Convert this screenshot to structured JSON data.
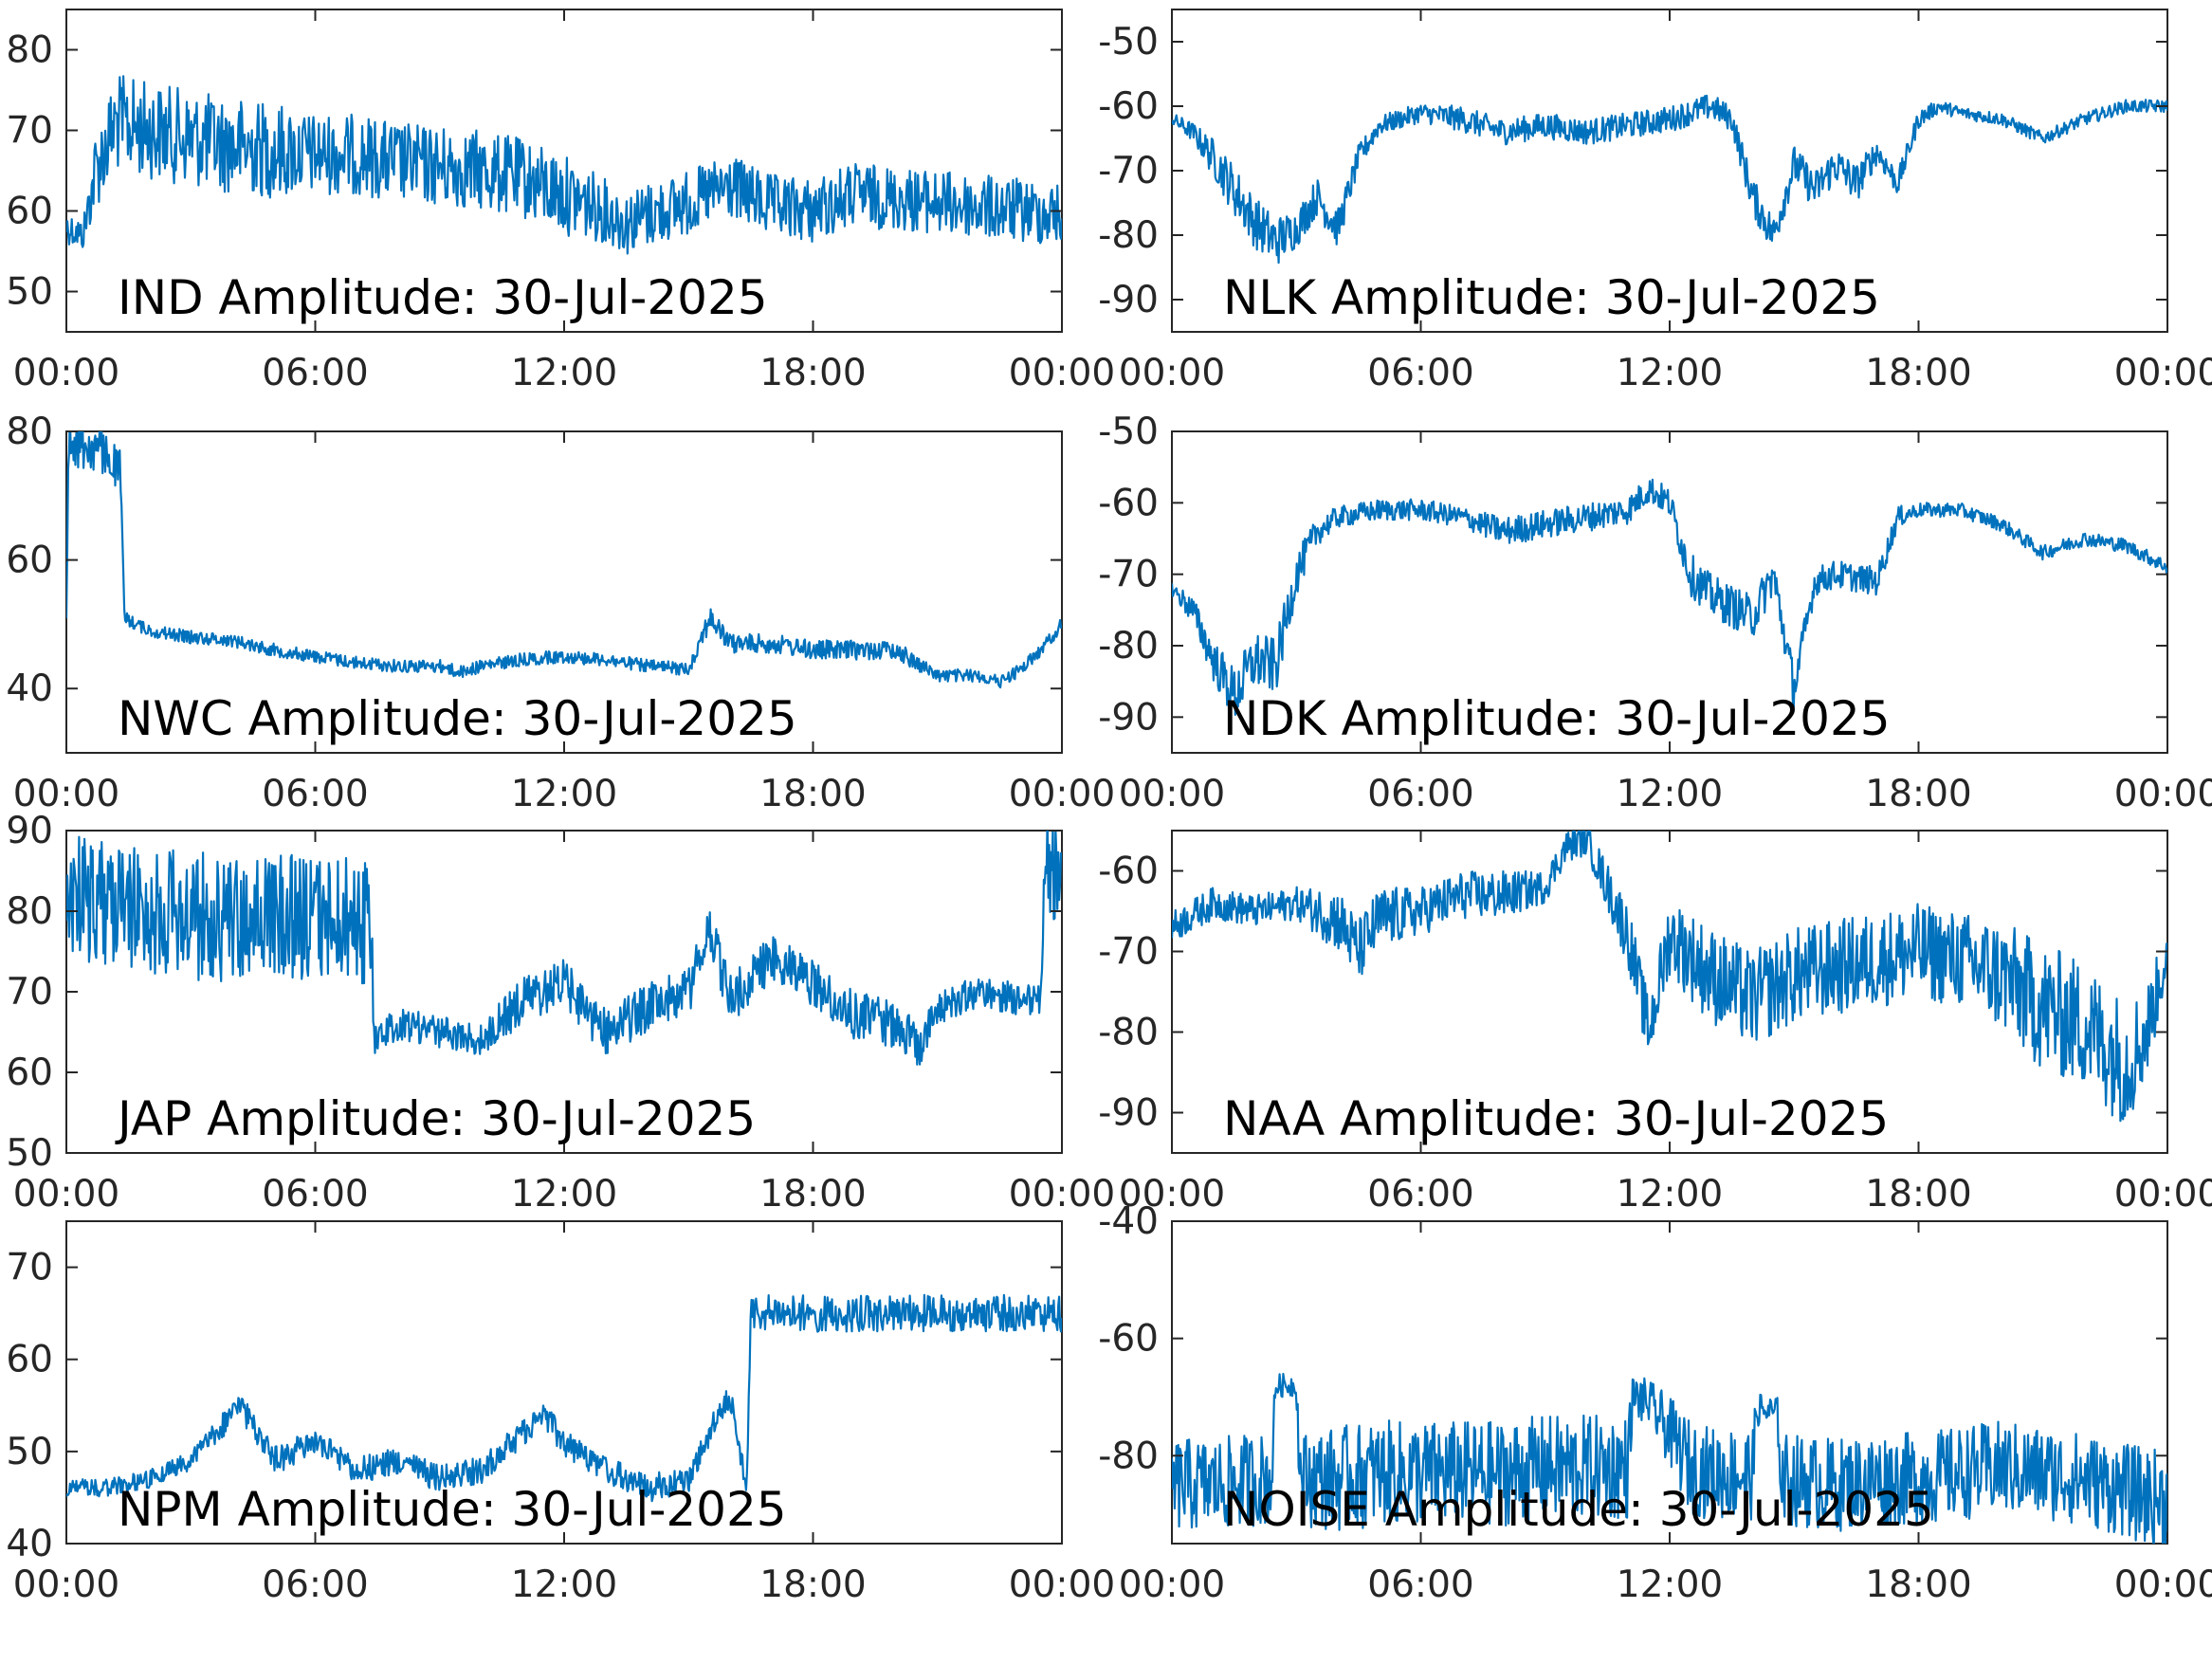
{
  "chart_data": [
    {
      "type": "line",
      "title": "IND Amplitude: 30-Jul-2025",
      "xlabel": "",
      "ylabel": "",
      "x_ticks": [
        "00:00",
        "06:00",
        "12:00",
        "18:00",
        "00:00"
      ],
      "xlim": [
        0,
        24
      ],
      "ylim": [
        -85,
        -45
      ],
      "y_reversed": true,
      "y_ticks": [
        -50,
        -60,
        -70,
        -80
      ],
      "y_tick_labels": [
        "50",
        "60",
        "70",
        "80"
      ],
      "color": "#0072bd",
      "grid": false,
      "series": [
        {
          "x": [
            0,
            0.4,
            0.7,
            1.2,
            2,
            3,
            4,
            5,
            6,
            7,
            8,
            9,
            10,
            11,
            12,
            13,
            13.5,
            14,
            15,
            16,
            17,
            18,
            19,
            20,
            21,
            22,
            23,
            24
          ],
          "values": [
            -58,
            -57,
            -65,
            -71,
            -70,
            -69,
            -68,
            -67.5,
            -67,
            -67,
            -66,
            -65.5,
            -65,
            -64,
            -62,
            -60,
            -58.5,
            -59.5,
            -61,
            -63,
            -60.5,
            -60,
            -62,
            -61.5,
            -61,
            -60.5,
            -60,
            -59.5
          ],
          "noise": [
            2,
            2,
            5,
            6,
            6,
            6,
            6,
            6,
            5,
            5,
            5,
            5,
            5,
            5,
            5,
            4,
            4,
            4,
            4,
            4,
            4,
            4,
            4,
            4,
            4,
            4,
            4,
            4
          ]
        }
      ]
    },
    {
      "type": "line",
      "title": "NLK Amplitude: 30-Jul-2025",
      "xlabel": "",
      "ylabel": "",
      "x_ticks": [
        "00:00",
        "06:00",
        "12:00",
        "18:00",
        "00:00"
      ],
      "xlim": [
        0,
        24
      ],
      "ylim": [
        -95,
        -45
      ],
      "y_reversed": false,
      "y_ticks": [
        -50,
        -60,
        -70,
        -80,
        -90
      ],
      "y_tick_labels": [
        "-50",
        "-60",
        "-70",
        "-80",
        "-90"
      ],
      "color": "#0072bd",
      "grid": false,
      "series": [
        {
          "x": [
            0,
            0.5,
            1,
            1.5,
            2,
            2.5,
            3,
            3.5,
            4,
            4.5,
            5,
            6,
            7,
            8,
            9,
            10,
            11,
            12,
            13,
            13.5,
            14,
            14.5,
            15,
            15.5,
            16,
            16.5,
            17,
            17.5,
            18,
            18.5,
            19,
            20,
            21,
            22,
            23,
            24
          ],
          "values": [
            -62,
            -64,
            -68,
            -73,
            -78,
            -81,
            -79,
            -74,
            -79,
            -68,
            -63,
            -61,
            -62,
            -64,
            -63,
            -64,
            -63,
            -62,
            -60,
            -62,
            -74,
            -80,
            -69,
            -73,
            -69,
            -72,
            -67,
            -72,
            -62,
            -60,
            -61,
            -62,
            -65,
            -62,
            -60,
            -60
          ],
          "noise": [
            1,
            1.5,
            3,
            4,
            4,
            4,
            3,
            3,
            3,
            2,
            1.5,
            1.5,
            2,
            2,
            2,
            2,
            2,
            2,
            2,
            2,
            3,
            3,
            3,
            3,
            3,
            3,
            2,
            2,
            1.5,
            1,
            1,
            1,
            1,
            1,
            1,
            1
          ]
        }
      ]
    },
    {
      "type": "line",
      "title": "NWC Amplitude: 30-Jul-2025",
      "xlabel": "",
      "ylabel": "",
      "x_ticks": [
        "00:00",
        "06:00",
        "12:00",
        "18:00",
        "00:00"
      ],
      "xlim": [
        0,
        24
      ],
      "ylim": [
        -80,
        -30
      ],
      "y_reversed": true,
      "y_ticks": [
        -40,
        -60,
        -80
      ],
      "y_tick_labels": [
        "40",
        "60",
        "80"
      ],
      "color": "#0072bd",
      "grid": false,
      "series": [
        {
          "x": [
            0,
            0.05,
            0.1,
            0.3,
            0.8,
            1.3,
            1.4,
            2,
            3,
            4,
            5,
            6,
            7,
            8,
            9,
            9.5,
            10,
            11,
            12,
            13,
            14,
            15,
            15.5,
            16,
            17,
            18,
            19,
            20,
            21,
            22,
            22.5,
            23,
            23.5,
            24
          ],
          "values": [
            -50,
            -79,
            -79,
            -78,
            -77,
            -74,
            -51,
            -49,
            -48,
            -47.5,
            -46,
            -45,
            -44,
            -43.5,
            -43.5,
            -42.5,
            -43.5,
            -44.5,
            -45,
            -44.5,
            -43.5,
            -43,
            -51,
            -47,
            -47,
            -46,
            -46,
            -46,
            -42,
            -42,
            -41,
            -43,
            -46,
            -50
          ],
          "noise": [
            1,
            2,
            4,
            4,
            4,
            3,
            1,
            1,
            1,
            1,
            1,
            1,
            1,
            1,
            1,
            1,
            1,
            1,
            1,
            1,
            1,
            1,
            2,
            1.5,
            1.5,
            1.5,
            1.5,
            1.5,
            1,
            1,
            1,
            1,
            1,
            1
          ]
        }
      ]
    },
    {
      "type": "line",
      "title": "NDK Amplitude: 30-Jul-2025",
      "xlabel": "",
      "ylabel": "",
      "x_ticks": [
        "00:00",
        "06:00",
        "12:00",
        "18:00",
        "00:00"
      ],
      "xlim": [
        0,
        24
      ],
      "ylim": [
        -95,
        -50
      ],
      "y_reversed": false,
      "y_ticks": [
        -50,
        -60,
        -70,
        -80,
        -90
      ],
      "y_tick_labels": [
        "-50",
        "-60",
        "-70",
        "-80",
        "-90"
      ],
      "color": "#0072bd",
      "grid": false,
      "series": [
        {
          "x": [
            0,
            0.5,
            1,
            1.5,
            2,
            2.5,
            3,
            3.5,
            4,
            5,
            6,
            7,
            8,
            9,
            10,
            11,
            11.5,
            12,
            12.5,
            13,
            14,
            14.5,
            15,
            15.5,
            16,
            17,
            17.5,
            18,
            19,
            20,
            21,
            22,
            23,
            24
          ],
          "values": [
            -72,
            -75,
            -82,
            -87,
            -82,
            -83,
            -70,
            -64,
            -62,
            -61,
            -61,
            -62,
            -64,
            -63,
            -62,
            -61,
            -58,
            -60,
            -70,
            -73,
            -76,
            -70,
            -86,
            -71,
            -70,
            -71,
            -62,
            -61,
            -61,
            -63,
            -67,
            -65,
            -66,
            -69
          ],
          "noise": [
            1,
            2,
            3,
            4,
            4,
            4,
            3,
            2,
            1.5,
            1.5,
            1.5,
            1.5,
            2,
            2,
            2,
            2,
            2,
            2,
            3,
            3,
            3,
            3,
            3,
            2,
            2,
            2,
            1.5,
            1,
            1,
            1,
            1,
            1,
            1,
            1
          ]
        }
      ]
    },
    {
      "type": "line",
      "title": "JAP Amplitude: 30-Jul-2025",
      "xlabel": "",
      "ylabel": "",
      "x_ticks": [
        "00:00",
        "06:00",
        "12:00",
        "18:00",
        "00:00"
      ],
      "xlim": [
        0,
        24
      ],
      "ylim": [
        -90,
        -50
      ],
      "y_reversed": true,
      "y_ticks": [
        -50,
        -60,
        -70,
        -80,
        -90
      ],
      "y_tick_labels": [
        "50",
        "60",
        "70",
        "80",
        "90"
      ],
      "color": "#0072bd",
      "grid": false,
      "series": [
        {
          "x": [
            0,
            1,
            2,
            3,
            4,
            5,
            6,
            7,
            7.35,
            7.4,
            8,
            9,
            10,
            11,
            12,
            13,
            14,
            15,
            15.5,
            16,
            17,
            17.5,
            18,
            19,
            20,
            20.5,
            21,
            22,
            23,
            23.5,
            23.6,
            24
          ],
          "values": [
            -82,
            -81,
            -80,
            -79.5,
            -79,
            -79,
            -79,
            -79,
            -79,
            -64,
            -66,
            -65,
            -64,
            -69,
            -71,
            -65,
            -68,
            -70,
            -78,
            -69,
            -74,
            -73,
            -71,
            -67,
            -66,
            -63,
            -68,
            -70,
            -69,
            -69,
            -86,
            -84
          ],
          "noise": [
            8,
            8,
            8,
            8,
            8,
            8,
            8,
            8,
            8,
            2,
            2,
            2,
            2,
            3,
            3,
            3,
            3,
            3,
            3,
            3,
            3,
            3,
            3,
            3,
            3,
            3,
            2,
            2,
            2,
            2,
            6,
            6
          ]
        }
      ]
    },
    {
      "type": "line",
      "title": "NAA Amplitude: 30-Jul-2025",
      "xlabel": "",
      "ylabel": "",
      "x_ticks": [
        "00:00",
        "06:00",
        "12:00",
        "18:00",
        "00:00"
      ],
      "xlim": [
        0,
        24
      ],
      "ylim": [
        -95,
        -55
      ],
      "y_reversed": false,
      "y_ticks": [
        -60,
        -70,
        -80,
        -90
      ],
      "y_tick_labels": [
        "-60",
        "-70",
        "-80",
        "-90"
      ],
      "color": "#0072bd",
      "grid": false,
      "series": [
        {
          "x": [
            0,
            1,
            2,
            3,
            4,
            4.5,
            5,
            6,
            7,
            8,
            9,
            9.5,
            10,
            10.5,
            11,
            11.5,
            12,
            13,
            14,
            15,
            16,
            17,
            18,
            19,
            20,
            21,
            22,
            23,
            23.5,
            24
          ],
          "values": [
            -67,
            -64,
            -65,
            -64,
            -66,
            -70,
            -66,
            -65,
            -63,
            -63,
            -62,
            -57,
            -56,
            -62,
            -68,
            -80,
            -68,
            -73,
            -76,
            -73,
            -72,
            -71,
            -70,
            -71,
            -73,
            -77,
            -79,
            -84,
            -80,
            -70
          ],
          "noise": [
            2,
            2,
            2,
            2,
            4,
            4,
            4,
            3,
            3,
            3,
            2,
            2,
            2,
            3,
            4,
            4,
            5,
            6,
            6,
            6,
            6,
            6,
            6,
            6,
            7,
            8,
            8,
            8,
            6,
            3
          ]
        }
      ]
    },
    {
      "type": "line",
      "title": "NPM Amplitude: 30-Jul-2025",
      "xlabel": "",
      "ylabel": "",
      "x_ticks": [
        "00:00",
        "06:00",
        "12:00",
        "18:00",
        "00:00"
      ],
      "xlim": [
        0,
        24
      ],
      "ylim": [
        -75,
        -40
      ],
      "y_reversed": true,
      "y_ticks": [
        -40,
        -50,
        -60,
        -70
      ],
      "y_tick_labels": [
        "40",
        "50",
        "60",
        "70"
      ],
      "color": "#0072bd",
      "grid": false,
      "series": [
        {
          "x": [
            0,
            1,
            2,
            3,
            4,
            4.2,
            5,
            6,
            7,
            8,
            9,
            10,
            11,
            11.5,
            12,
            13,
            14,
            15,
            15.5,
            16,
            16.4,
            16.5,
            17,
            18,
            19,
            20,
            21,
            22,
            23,
            24
          ],
          "values": [
            -46,
            -46,
            -47,
            -49,
            -54,
            -55,
            -49,
            -51,
            -48,
            -49,
            -47,
            -48,
            -52,
            -54,
            -51,
            -48,
            -46,
            -47,
            -52,
            -56,
            -46,
            -65,
            -65,
            -65,
            -65,
            -65,
            -65,
            -65,
            -65,
            -65
          ],
          "noise": [
            1,
            1,
            1,
            1,
            1.5,
            1.5,
            1.5,
            1.5,
            1.5,
            1.5,
            1.5,
            1.5,
            1.5,
            1.5,
            1.5,
            1.5,
            1.5,
            1.5,
            1.5,
            1.5,
            1,
            2,
            2,
            2,
            2,
            2,
            2,
            2,
            2,
            2
          ]
        }
      ]
    },
    {
      "type": "line",
      "title": "NOISE Amplitude: 30-Jul-2025",
      "xlabel": "",
      "ylabel": "",
      "x_ticks": [
        "00:00",
        "06:00",
        "12:00",
        "18:00",
        "00:00"
      ],
      "xlim": [
        0,
        24
      ],
      "ylim": [
        -95,
        -40
      ],
      "y_reversed": false,
      "y_ticks": [
        -40,
        -60,
        -80
      ],
      "y_tick_labels": [
        "-40",
        "-60",
        "-80"
      ],
      "color": "#0072bd",
      "grid": false,
      "series": [
        {
          "x": [
            0,
            1,
            2,
            2.4,
            2.5,
            3,
            3.1,
            4,
            5,
            6,
            7,
            8,
            9,
            10,
            11,
            11.1,
            11.5,
            12,
            12.5,
            13,
            14,
            14.1,
            14.6,
            14.7,
            16,
            17,
            18,
            19,
            20,
            21,
            22,
            23,
            24
          ],
          "values": [
            -85,
            -85,
            -84,
            -84,
            -68,
            -68,
            -84,
            -84,
            -83,
            -83,
            -83,
            -83,
            -82,
            -82,
            -82,
            -70,
            -71,
            -76,
            -82,
            -83,
            -83,
            -72,
            -73,
            -84,
            -85,
            -84,
            -84,
            -83,
            -82,
            -83,
            -84,
            -86,
            -88
          ],
          "noise": [
            8,
            8,
            8,
            8,
            2,
            2,
            8,
            9,
            9,
            9,
            9,
            9,
            9,
            9,
            9,
            4,
            4,
            6,
            8,
            8,
            8,
            3,
            3,
            8,
            8,
            8,
            8,
            8,
            8,
            8,
            8,
            8,
            9
          ]
        }
      ]
    }
  ]
}
